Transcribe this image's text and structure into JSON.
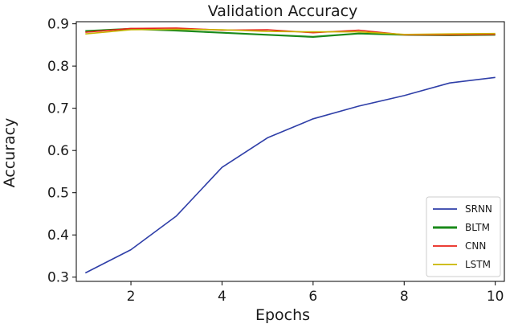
{
  "chart_data": {
    "type": "line",
    "title": "Validation Accuracy",
    "xlabel": "Epochs",
    "ylabel": "Accuracy",
    "x": [
      1,
      2,
      3,
      4,
      5,
      6,
      7,
      8,
      9,
      10
    ],
    "xlim": [
      0.8,
      10.2
    ],
    "ylim": [
      0.29,
      0.905
    ],
    "xticks": [
      2,
      4,
      6,
      8,
      10
    ],
    "yticks": [
      0.3,
      0.4,
      0.5,
      0.6,
      0.7,
      0.8,
      0.9
    ],
    "xtick_labels": [
      "2",
      "4",
      "6",
      "8",
      "10"
    ],
    "ytick_labels": [
      "0.3",
      "0.4",
      "0.5",
      "0.6",
      "0.7",
      "0.8",
      "0.9"
    ],
    "grid": false,
    "legend_position": "bottom-right",
    "series": [
      {
        "name": "SRNN",
        "color": "#2f3fa8",
        "values": [
          0.31,
          0.365,
          0.445,
          0.56,
          0.63,
          0.675,
          0.705,
          0.73,
          0.76,
          0.773
        ]
      },
      {
        "name": "BLTM",
        "color": "#1a8a1a",
        "values": [
          0.883,
          0.888,
          0.884,
          0.879,
          0.874,
          0.869,
          0.877,
          0.874,
          0.873,
          0.874
        ]
      },
      {
        "name": "CNN",
        "color": "#e8231a",
        "values": [
          0.88,
          0.889,
          0.89,
          0.885,
          0.886,
          0.879,
          0.885,
          0.874,
          0.874,
          0.875
        ]
      },
      {
        "name": "LSTM",
        "color": "#c8b400",
        "values": [
          0.876,
          0.886,
          0.887,
          0.886,
          0.882,
          0.881,
          0.881,
          0.875,
          0.876,
          0.877
        ]
      }
    ]
  }
}
